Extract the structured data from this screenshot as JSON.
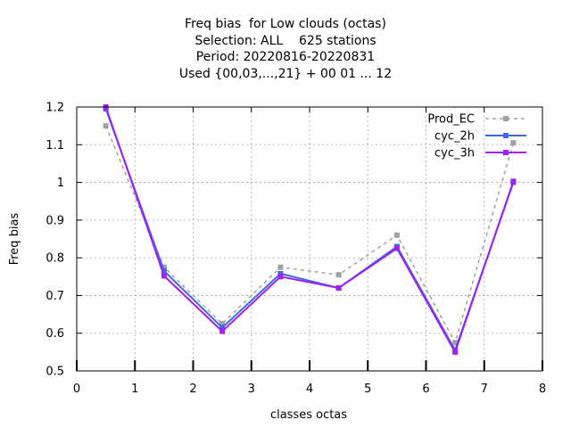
{
  "chart_data": {
    "type": "line",
    "title": [
      "Freq bias  for Low clouds (octas)",
      "Selection: ALL    625 stations",
      "Period: 20220816-20220831",
      "Used {00,03,...,21} + 00 01 ... 12"
    ],
    "xlabel": "classes octas",
    "ylabel": "Freq bias",
    "xlim": [
      0,
      8
    ],
    "ylim": [
      0.5,
      1.2
    ],
    "xticks": [
      "0",
      "1",
      "2",
      "3",
      "4",
      "5",
      "6",
      "7",
      "8"
    ],
    "yticks": [
      "0.5",
      "0.6",
      "0.7",
      "0.8",
      "0.9",
      "1",
      "1.1",
      "1.2"
    ],
    "grid": true,
    "legend_position": "top-right",
    "x": [
      0.5,
      1.5,
      2.5,
      3.5,
      4.5,
      5.5,
      6.5,
      7.5
    ],
    "series": [
      {
        "name": "Prod_EC",
        "color": "#a0a0a0",
        "dashed": true,
        "values": [
          1.15,
          0.775,
          0.625,
          0.775,
          0.755,
          0.86,
          0.575,
          1.105
        ]
      },
      {
        "name": "cyc_2h",
        "color": "#4169e1",
        "dashed": false,
        "values": [
          1.195,
          0.765,
          0.615,
          0.758,
          0.72,
          0.83,
          0.555,
          1.0
        ]
      },
      {
        "name": "cyc_3h",
        "color": "#a020f0",
        "dashed": false,
        "values": [
          1.2,
          0.752,
          0.605,
          0.75,
          0.72,
          0.825,
          0.55,
          1.003
        ]
      }
    ]
  }
}
